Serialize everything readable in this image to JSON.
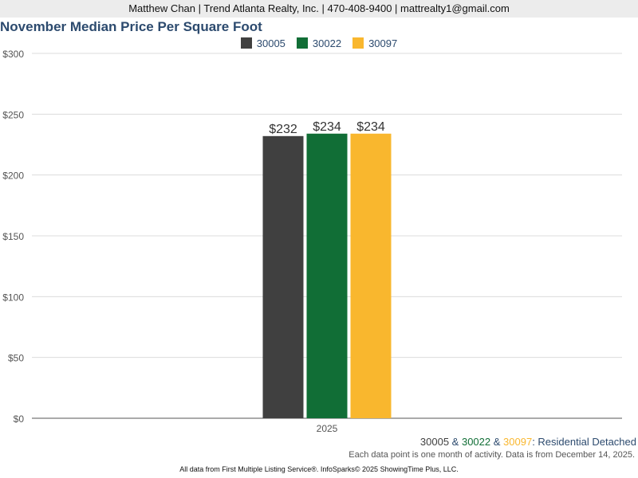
{
  "header": {
    "contact": "Matthew Chan | Trend Atlanta Realty, Inc. | 470-408-9400 | mattrealty1@gmail.com"
  },
  "colors": {
    "s30005": "#404040",
    "s30022": "#116e36",
    "s30097": "#f9b72e",
    "title": "#2c4a6e"
  },
  "chart_data": {
    "type": "bar",
    "title": "November Median Price Per Square Foot",
    "categories": [
      "2025"
    ],
    "series": [
      {
        "name": "30005",
        "values": [
          232
        ],
        "label": "$232",
        "color": "#404040"
      },
      {
        "name": "30022",
        "values": [
          234
        ],
        "label": "$234",
        "color": "#116e36"
      },
      {
        "name": "30097",
        "values": [
          234
        ],
        "label": "$234",
        "color": "#f9b72e"
      }
    ],
    "ylim": [
      0,
      300
    ],
    "yticks": [
      {
        "value": 0,
        "label": "$0"
      },
      {
        "value": 50,
        "label": "$50"
      },
      {
        "value": 100,
        "label": "$100"
      },
      {
        "value": 150,
        "label": "$150"
      },
      {
        "value": 200,
        "label": "$200"
      },
      {
        "value": 250,
        "label": "$250"
      },
      {
        "value": 300,
        "label": "$300"
      }
    ],
    "xlabel": "",
    "ylabel": "",
    "grid": true,
    "legend_position": "top-center"
  },
  "subtitle": {
    "s1": "30005",
    "amp1": " & ",
    "s2": "30022",
    "amp2": " & ",
    "s3": "30097",
    "suffix": ": Residential Detached"
  },
  "note": "Each data point is one month of activity. Data is from December 14, 2025.",
  "footer": "All data from First Multiple Listing Service®. InfoSparks© 2025 ShowingTime Plus, LLC."
}
